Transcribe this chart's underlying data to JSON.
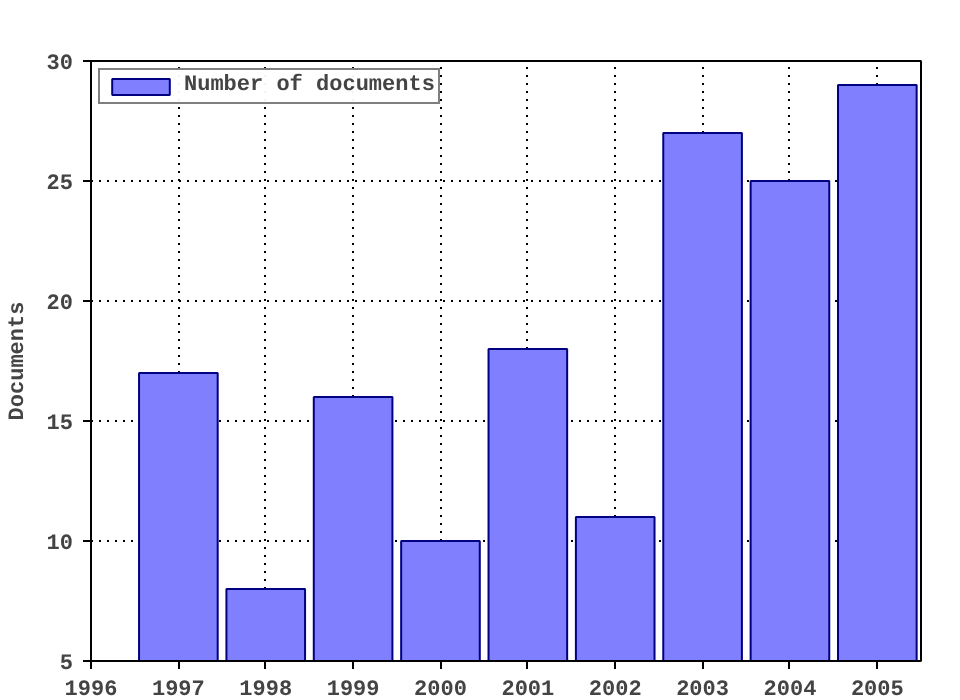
{
  "chart_data": {
    "type": "bar",
    "ylabel": "Documents",
    "x": [
      1997,
      1998,
      1999,
      2000,
      2001,
      2002,
      2003,
      2004,
      2005
    ],
    "series": [
      {
        "name": "Number of documents",
        "color": "#8080ff",
        "values": [
          17,
          8,
          16,
          10,
          18,
          11,
          27,
          25,
          29
        ]
      }
    ],
    "xlim": [
      1996,
      2005.5
    ],
    "xticks": [
      1996,
      1997,
      1998,
      1999,
      2000,
      2001,
      2002,
      2003,
      2004,
      2005
    ],
    "ylim": [
      5,
      30
    ],
    "yticks": [
      5,
      10,
      15,
      20,
      25,
      30
    ],
    "grid": true,
    "legend": "top left"
  }
}
